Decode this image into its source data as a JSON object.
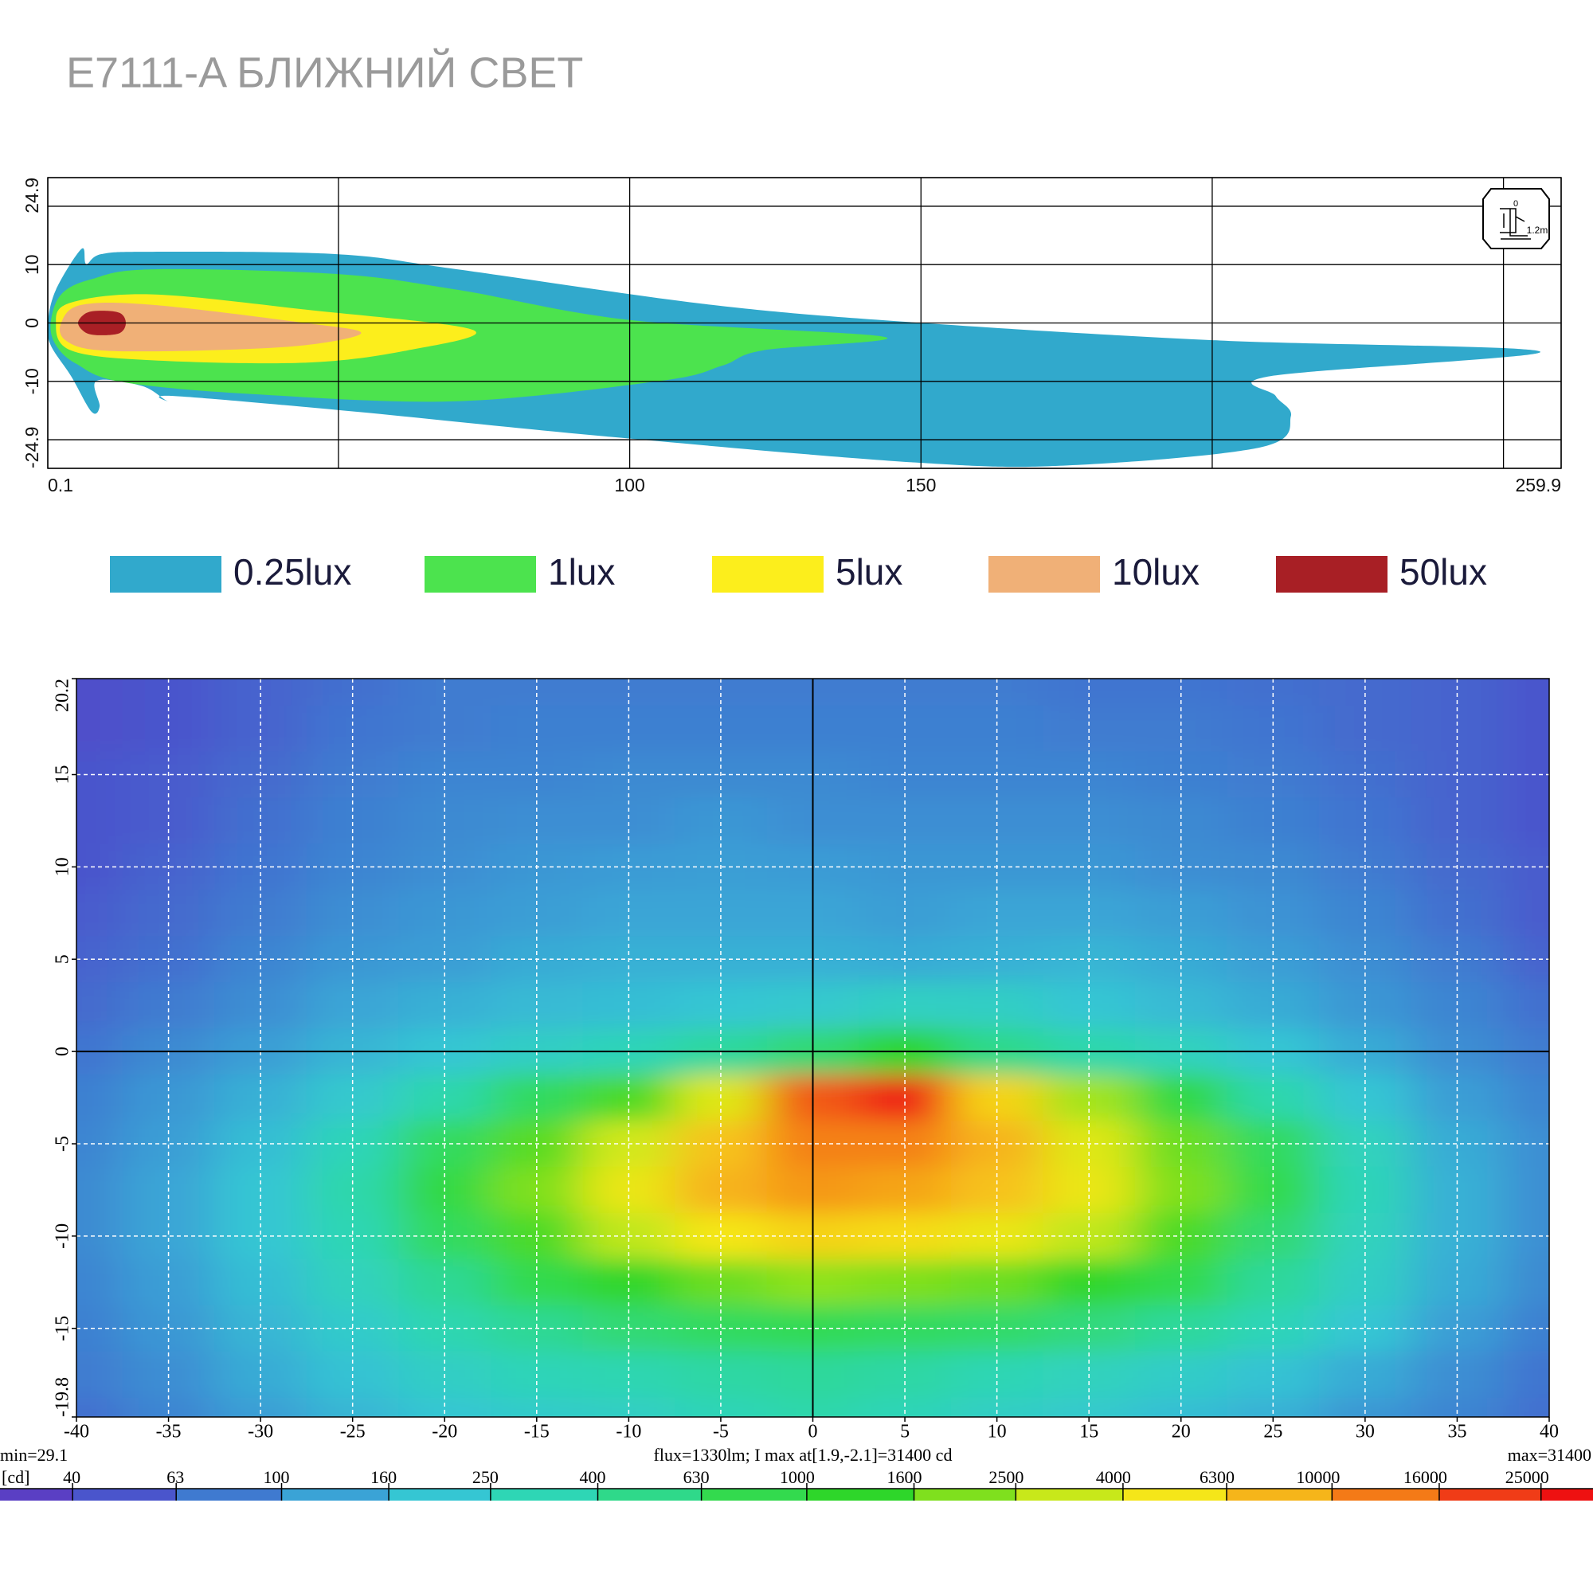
{
  "chart_data": [
    {
      "type": "isolux",
      "title": "E7111-A  БЛИЖНИЙ СВЕТ",
      "xlim": [
        0.1,
        259.9
      ],
      "xticks": [
        0.1,
        {
          "value": 50,
          "label": null
        },
        100,
        150,
        {
          "value": 200,
          "label": null
        },
        {
          "value": 250,
          "label": null
        },
        259.9
      ],
      "ylim": [
        -24.9,
        24.9
      ],
      "yticks": [
        -24.9,
        {
          "value": -20,
          "label": null
        },
        -10,
        0,
        10,
        {
          "value": 20,
          "label": null
        },
        24.9
      ],
      "grid": true,
      "icon_texts": [
        "0",
        "1.2m"
      ],
      "series": [
        {
          "name": "0.25lux",
          "color": "#31a9cc",
          "x": [
            0.1,
            1.5,
            5.9,
            6.7,
            9.3,
            18.1,
            49.5,
            70.4,
            114.1,
            150.2,
            201.3,
            256.3,
            210.0,
            210.9,
            213.5,
            208.3,
            175.1,
            149.0,
            96.6,
            53.0,
            21.6,
            20.7,
            16.3,
            8.5,
            9.0,
            7.6,
            4.1,
            0.6
          ],
          "y": [
            0,
            5.7,
            12.7,
            10.1,
            11.8,
            12.2,
            11.8,
            9.2,
            3.1,
            0,
            -3.0,
            -4.9,
            -9.1,
            -12.5,
            -16.0,
            -21.3,
            -24.4,
            -23.9,
            -19.5,
            -15.2,
            -12.5,
            -13.4,
            -10.8,
            -9.9,
            -14.3,
            -15.2,
            -9.1,
            -3.8
          ]
        },
        {
          "name": "1lux",
          "color": "#4ce34e",
          "x": [
            0.6,
            2.4,
            7.6,
            18.1,
            49.5,
            70.4,
            100.1,
            143.8,
            122.8,
            115.9,
            105.4,
            70.4,
            35.5,
            12.8,
            5.0,
            1.5
          ],
          "y": [
            0,
            4.9,
            7.5,
            9.2,
            8.4,
            5.7,
            0.5,
            -2.4,
            -4.7,
            -7.3,
            -9.9,
            -13.4,
            -12.2,
            -10.1,
            -7.0,
            -3.8
          ]
        },
        {
          "name": "5lux",
          "color": "#fcee1c",
          "x": [
            1.5,
            4.1,
            18.1,
            44.3,
            73.1,
            61.8,
            44.3,
            18.1,
            4.1
          ],
          "y": [
            0,
            3.5,
            4.9,
            2.3,
            -1.2,
            -4.7,
            -6.8,
            -6.4,
            -4.7
          ]
        },
        {
          "name": "10lux",
          "color": "#f0b077",
          "x": [
            2.4,
            5.9,
            18.1,
            44.3,
            53.9,
            44.3,
            26.8,
            9.3,
            3.2
          ],
          "y": [
            0,
            3.1,
            3.1,
            0,
            -1.7,
            -3.8,
            -4.7,
            -4.7,
            -3.0
          ]
        },
        {
          "name": "50lux",
          "color": "#a81f25",
          "x": [
            5.3,
            6.7,
            9.3,
            12.5,
            13.5,
            12.5,
            9.3,
            6.7
          ],
          "y": [
            0,
            1.7,
            2.1,
            1.7,
            0,
            -1.7,
            -2.1,
            -1.7
          ]
        }
      ]
    },
    {
      "type": "heatmap",
      "xlim": [
        -40,
        40
      ],
      "xticks": [
        -40,
        -35,
        -30,
        -25,
        -20,
        -15,
        -10,
        -5,
        0,
        5,
        10,
        15,
        20,
        25,
        30,
        35,
        40
      ],
      "ylim": [
        -19.8,
        20.2
      ],
      "yticks": [
        -19.8,
        -15,
        -10,
        -5,
        0,
        5,
        10,
        15,
        20.2
      ],
      "grid": true,
      "annotations": [
        "min=29.1",
        "flux=1330lm; I max at[1.9,-2.1]=31400 cd",
        "max=31400"
      ],
      "colorbar_unit": "[cd]",
      "clim": [
        29.1,
        31400
      ],
      "colorbar_ticks": [
        40,
        63,
        100,
        160,
        250,
        400,
        630,
        1000,
        1600,
        2500,
        4000,
        6300,
        10000,
        16000,
        25000
      ],
      "colors": [
        "#5a3fc4",
        "#4a55cc",
        "#3f7ad0",
        "#3aa3d6",
        "#35c6d3",
        "#2ed6b5",
        "#2fd98a",
        "#33da4e",
        "#2ed62a",
        "#7fe01e",
        "#c8e81a",
        "#f5e619",
        "#f6b51a",
        "#f47a17",
        "#f03c17",
        "#ee1111"
      ],
      "x": [
        -40,
        -35,
        -30,
        -25,
        -20,
        -15,
        -10,
        -5,
        0,
        5,
        10,
        15,
        20,
        25,
        30,
        35,
        40
      ],
      "y": [
        20,
        17.5,
        15,
        12.5,
        10,
        7.5,
        5,
        2.5,
        0,
        -2.5,
        -5,
        -7.5,
        -10,
        -12.5,
        -15,
        -17.5,
        -20
      ],
      "z": [
        [
          45,
          50,
          60,
          70,
          80,
          80,
          80,
          80,
          80,
          80,
          80,
          75,
          75,
          70,
          65,
          60,
          50
        ],
        [
          45,
          50,
          60,
          75,
          80,
          85,
          85,
          85,
          85,
          85,
          85,
          80,
          80,
          75,
          65,
          60,
          50
        ],
        [
          50,
          55,
          65,
          80,
          90,
          90,
          95,
          95,
          95,
          90,
          90,
          90,
          85,
          80,
          70,
          60,
          50
        ],
        [
          50,
          55,
          70,
          85,
          95,
          100,
          100,
          110,
          100,
          100,
          100,
          100,
          95,
          85,
          75,
          60,
          50
        ],
        [
          50,
          60,
          75,
          90,
          100,
          110,
          115,
          120,
          115,
          110,
          110,
          110,
          100,
          95,
          80,
          65,
          55
        ],
        [
          55,
          65,
          80,
          100,
          110,
          120,
          130,
          130,
          130,
          120,
          130,
          130,
          120,
          105,
          90,
          70,
          55
        ],
        [
          60,
          70,
          90,
          110,
          120,
          140,
          150,
          150,
          150,
          140,
          150,
          160,
          140,
          120,
          100,
          80,
          60
        ],
        [
          65,
          80,
          100,
          130,
          150,
          170,
          180,
          200,
          220,
          260,
          250,
          200,
          170,
          140,
          110,
          90,
          70
        ],
        [
          75,
          95,
          120,
          160,
          200,
          250,
          300,
          400,
          600,
          1200,
          500,
          350,
          280,
          200,
          140,
          100,
          80
        ],
        [
          85,
          110,
          150,
          220,
          350,
          700,
          1500,
          4000,
          16000,
          25000,
          6000,
          2500,
          900,
          350,
          200,
          120,
          90
        ],
        [
          90,
          120,
          180,
          300,
          700,
          1600,
          3500,
          7000,
          12000,
          12000,
          8000,
          4000,
          1800,
          700,
          280,
          140,
          100
        ],
        [
          95,
          130,
          200,
          350,
          900,
          2000,
          4500,
          8000,
          10000,
          9000,
          7000,
          4500,
          2000,
          800,
          300,
          150,
          100
        ],
        [
          95,
          130,
          200,
          320,
          700,
          1500,
          3000,
          5000,
          6000,
          5500,
          4500,
          3000,
          1500,
          600,
          280,
          150,
          100
        ],
        [
          90,
          120,
          180,
          280,
          450,
          800,
          1300,
          1800,
          2200,
          2000,
          1800,
          1300,
          800,
          420,
          250,
          140,
          95
        ],
        [
          85,
          110,
          160,
          230,
          330,
          450,
          600,
          700,
          750,
          700,
          650,
          550,
          420,
          300,
          200,
          120,
          85
        ],
        [
          80,
          100,
          140,
          190,
          250,
          300,
          330,
          380,
          420,
          380,
          320,
          280,
          240,
          190,
          140,
          100,
          75
        ],
        [
          70,
          90,
          120,
          160,
          200,
          230,
          250,
          300,
          350,
          300,
          250,
          220,
          180,
          150,
          110,
          90,
          70
        ]
      ]
    }
  ]
}
